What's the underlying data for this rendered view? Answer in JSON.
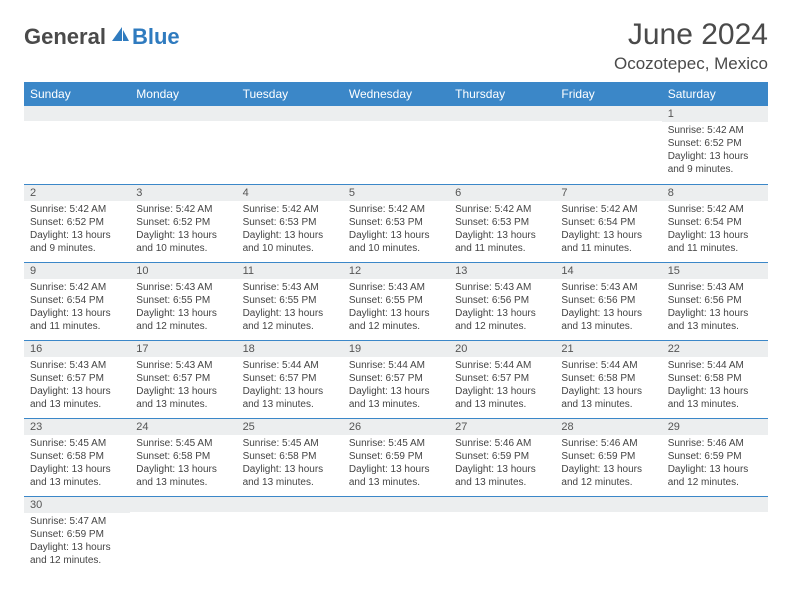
{
  "logo": {
    "text1": "General",
    "text2": "Blue"
  },
  "title": "June 2024",
  "location": "Ocozotepec, Mexico",
  "colors": {
    "header_bg": "#3b87c8",
    "header_text": "#ffffff",
    "daynum_bg": "#eceeef",
    "cell_border": "#3b87c8",
    "logo_dark": "#4a4a4a",
    "logo_blue": "#2f7bbf"
  },
  "weekdays": [
    "Sunday",
    "Monday",
    "Tuesday",
    "Wednesday",
    "Thursday",
    "Friday",
    "Saturday"
  ],
  "weeks": [
    [
      {
        "n": "",
        "sr": "",
        "ss": "",
        "dl": ""
      },
      {
        "n": "",
        "sr": "",
        "ss": "",
        "dl": ""
      },
      {
        "n": "",
        "sr": "",
        "ss": "",
        "dl": ""
      },
      {
        "n": "",
        "sr": "",
        "ss": "",
        "dl": ""
      },
      {
        "n": "",
        "sr": "",
        "ss": "",
        "dl": ""
      },
      {
        "n": "",
        "sr": "",
        "ss": "",
        "dl": ""
      },
      {
        "n": "1",
        "sr": "Sunrise: 5:42 AM",
        "ss": "Sunset: 6:52 PM",
        "dl": "Daylight: 13 hours and 9 minutes."
      }
    ],
    [
      {
        "n": "2",
        "sr": "Sunrise: 5:42 AM",
        "ss": "Sunset: 6:52 PM",
        "dl": "Daylight: 13 hours and 9 minutes."
      },
      {
        "n": "3",
        "sr": "Sunrise: 5:42 AM",
        "ss": "Sunset: 6:52 PM",
        "dl": "Daylight: 13 hours and 10 minutes."
      },
      {
        "n": "4",
        "sr": "Sunrise: 5:42 AM",
        "ss": "Sunset: 6:53 PM",
        "dl": "Daylight: 13 hours and 10 minutes."
      },
      {
        "n": "5",
        "sr": "Sunrise: 5:42 AM",
        "ss": "Sunset: 6:53 PM",
        "dl": "Daylight: 13 hours and 10 minutes."
      },
      {
        "n": "6",
        "sr": "Sunrise: 5:42 AM",
        "ss": "Sunset: 6:53 PM",
        "dl": "Daylight: 13 hours and 11 minutes."
      },
      {
        "n": "7",
        "sr": "Sunrise: 5:42 AM",
        "ss": "Sunset: 6:54 PM",
        "dl": "Daylight: 13 hours and 11 minutes."
      },
      {
        "n": "8",
        "sr": "Sunrise: 5:42 AM",
        "ss": "Sunset: 6:54 PM",
        "dl": "Daylight: 13 hours and 11 minutes."
      }
    ],
    [
      {
        "n": "9",
        "sr": "Sunrise: 5:42 AM",
        "ss": "Sunset: 6:54 PM",
        "dl": "Daylight: 13 hours and 11 minutes."
      },
      {
        "n": "10",
        "sr": "Sunrise: 5:43 AM",
        "ss": "Sunset: 6:55 PM",
        "dl": "Daylight: 13 hours and 12 minutes."
      },
      {
        "n": "11",
        "sr": "Sunrise: 5:43 AM",
        "ss": "Sunset: 6:55 PM",
        "dl": "Daylight: 13 hours and 12 minutes."
      },
      {
        "n": "12",
        "sr": "Sunrise: 5:43 AM",
        "ss": "Sunset: 6:55 PM",
        "dl": "Daylight: 13 hours and 12 minutes."
      },
      {
        "n": "13",
        "sr": "Sunrise: 5:43 AM",
        "ss": "Sunset: 6:56 PM",
        "dl": "Daylight: 13 hours and 12 minutes."
      },
      {
        "n": "14",
        "sr": "Sunrise: 5:43 AM",
        "ss": "Sunset: 6:56 PM",
        "dl": "Daylight: 13 hours and 13 minutes."
      },
      {
        "n": "15",
        "sr": "Sunrise: 5:43 AM",
        "ss": "Sunset: 6:56 PM",
        "dl": "Daylight: 13 hours and 13 minutes."
      }
    ],
    [
      {
        "n": "16",
        "sr": "Sunrise: 5:43 AM",
        "ss": "Sunset: 6:57 PM",
        "dl": "Daylight: 13 hours and 13 minutes."
      },
      {
        "n": "17",
        "sr": "Sunrise: 5:43 AM",
        "ss": "Sunset: 6:57 PM",
        "dl": "Daylight: 13 hours and 13 minutes."
      },
      {
        "n": "18",
        "sr": "Sunrise: 5:44 AM",
        "ss": "Sunset: 6:57 PM",
        "dl": "Daylight: 13 hours and 13 minutes."
      },
      {
        "n": "19",
        "sr": "Sunrise: 5:44 AM",
        "ss": "Sunset: 6:57 PM",
        "dl": "Daylight: 13 hours and 13 minutes."
      },
      {
        "n": "20",
        "sr": "Sunrise: 5:44 AM",
        "ss": "Sunset: 6:57 PM",
        "dl": "Daylight: 13 hours and 13 minutes."
      },
      {
        "n": "21",
        "sr": "Sunrise: 5:44 AM",
        "ss": "Sunset: 6:58 PM",
        "dl": "Daylight: 13 hours and 13 minutes."
      },
      {
        "n": "22",
        "sr": "Sunrise: 5:44 AM",
        "ss": "Sunset: 6:58 PM",
        "dl": "Daylight: 13 hours and 13 minutes."
      }
    ],
    [
      {
        "n": "23",
        "sr": "Sunrise: 5:45 AM",
        "ss": "Sunset: 6:58 PM",
        "dl": "Daylight: 13 hours and 13 minutes."
      },
      {
        "n": "24",
        "sr": "Sunrise: 5:45 AM",
        "ss": "Sunset: 6:58 PM",
        "dl": "Daylight: 13 hours and 13 minutes."
      },
      {
        "n": "25",
        "sr": "Sunrise: 5:45 AM",
        "ss": "Sunset: 6:58 PM",
        "dl": "Daylight: 13 hours and 13 minutes."
      },
      {
        "n": "26",
        "sr": "Sunrise: 5:45 AM",
        "ss": "Sunset: 6:59 PM",
        "dl": "Daylight: 13 hours and 13 minutes."
      },
      {
        "n": "27",
        "sr": "Sunrise: 5:46 AM",
        "ss": "Sunset: 6:59 PM",
        "dl": "Daylight: 13 hours and 13 minutes."
      },
      {
        "n": "28",
        "sr": "Sunrise: 5:46 AM",
        "ss": "Sunset: 6:59 PM",
        "dl": "Daylight: 13 hours and 12 minutes."
      },
      {
        "n": "29",
        "sr": "Sunrise: 5:46 AM",
        "ss": "Sunset: 6:59 PM",
        "dl": "Daylight: 13 hours and 12 minutes."
      }
    ],
    [
      {
        "n": "30",
        "sr": "Sunrise: 5:47 AM",
        "ss": "Sunset: 6:59 PM",
        "dl": "Daylight: 13 hours and 12 minutes."
      },
      {
        "n": "",
        "sr": "",
        "ss": "",
        "dl": ""
      },
      {
        "n": "",
        "sr": "",
        "ss": "",
        "dl": ""
      },
      {
        "n": "",
        "sr": "",
        "ss": "",
        "dl": ""
      },
      {
        "n": "",
        "sr": "",
        "ss": "",
        "dl": ""
      },
      {
        "n": "",
        "sr": "",
        "ss": "",
        "dl": ""
      },
      {
        "n": "",
        "sr": "",
        "ss": "",
        "dl": ""
      }
    ]
  ]
}
